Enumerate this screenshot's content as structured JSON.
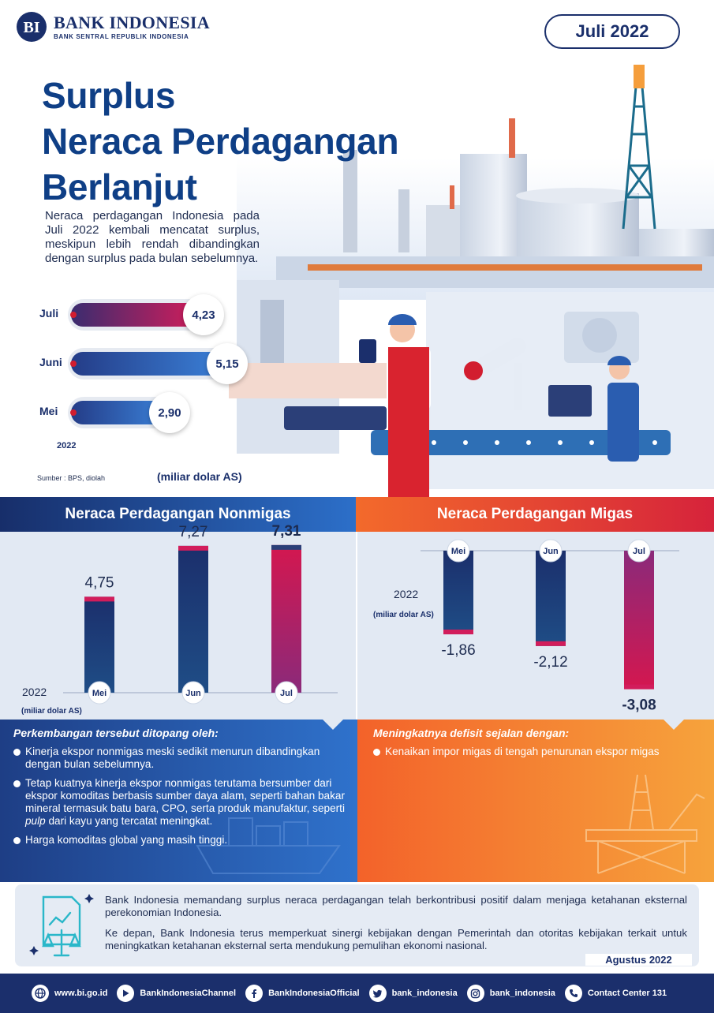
{
  "brand": {
    "name": "BANK INDONESIA",
    "subtitle": "BANK SENTRAL REPUBLIK INDONESIA"
  },
  "period": "Juli 2022",
  "title_lines": [
    "Surplus",
    "Neraca Perdagangan",
    "Berlanjut"
  ],
  "intro": "Neraca perdagangan Indonesia pada Juli 2022 kembali mencatat surplus, meskipun lebih rendah dibandingkan dengan surplus pada bulan sebelumnya.",
  "colors": {
    "navy": "#1a2f6b",
    "blue": "#2c6fc9",
    "red": "#d21d2f",
    "orange": "#f36a2b"
  },
  "chart_data": [
    {
      "type": "bar",
      "orientation": "horizontal",
      "categories": [
        "Juli",
        "Juni",
        "Mei"
      ],
      "values": [
        4.23,
        5.15,
        2.9
      ],
      "value_labels": [
        "4,23",
        "5,15",
        "2,90"
      ],
      "year_label": "2022",
      "unit": "(miliar dolar AS)",
      "source": "Sumber : BPS, diolah"
    },
    {
      "type": "bar",
      "title": "Neraca Perdagangan Nonmigas",
      "categories": [
        "Mei",
        "Jun",
        "Jul"
      ],
      "values": [
        4.75,
        7.27,
        7.31
      ],
      "value_labels": [
        "4,75",
        "7,27",
        "7,31"
      ],
      "year_label": "2022",
      "unit": "(miliar dolar AS)"
    },
    {
      "type": "bar",
      "title": "Neraca Perdagangan Migas",
      "categories": [
        "Mei",
        "Jun",
        "Jul"
      ],
      "values": [
        -1.86,
        -2.12,
        -3.08
      ],
      "value_labels": [
        "-1,86",
        "-2,12",
        "-3,08"
      ],
      "year_label": "2022",
      "unit": "(miliar dolar AS)"
    }
  ],
  "notes": {
    "left": {
      "title": "Perkembangan tersebut ditopang oleh:",
      "items": [
        "Kinerja ekspor nonmigas meski sedikit menurun dibandingkan dengan bulan sebelumnya.",
        "Tetap kuatnya kinerja ekspor nonmigas terutama bersumber dari ekspor komoditas berbasis sumber daya alam, seperti bahan bakar mineral termasuk batu bara, CPO, serta produk manufaktur, seperti pulp dari kayu yang tercatat meningkat.",
        "Harga komoditas global yang masih tinggi."
      ]
    },
    "right": {
      "title": "Meningkatnya defisit sejalan dengan:",
      "items": [
        "Kenaikan impor migas di tengah penurunan ekspor migas"
      ]
    }
  },
  "conclusion": {
    "p1": "Bank Indonesia memandang surplus neraca perdagangan telah berkontribusi positif dalam menjaga ketahanan eksternal perekonomian Indonesia.",
    "p2": "Ke depan, Bank Indonesia terus memperkuat sinergi kebijakan dengan Pemerintah dan otoritas kebijakan terkait untuk meningkatkan ketahanan eksternal serta mendukung pemulihan ekonomi nasional.",
    "date": "Agustus 2022"
  },
  "footer": [
    {
      "icon": "globe-icon",
      "label": "www.bi.go.id"
    },
    {
      "icon": "play-icon",
      "label": "BankIndonesiaChannel"
    },
    {
      "icon": "facebook-icon",
      "label": "BankIndonesiaOfficial"
    },
    {
      "icon": "twitter-icon",
      "label": "bank_indonesia"
    },
    {
      "icon": "instagram-icon",
      "label": "bank_indonesia"
    },
    {
      "icon": "phone-icon",
      "label": "Contact Center 131"
    }
  ]
}
